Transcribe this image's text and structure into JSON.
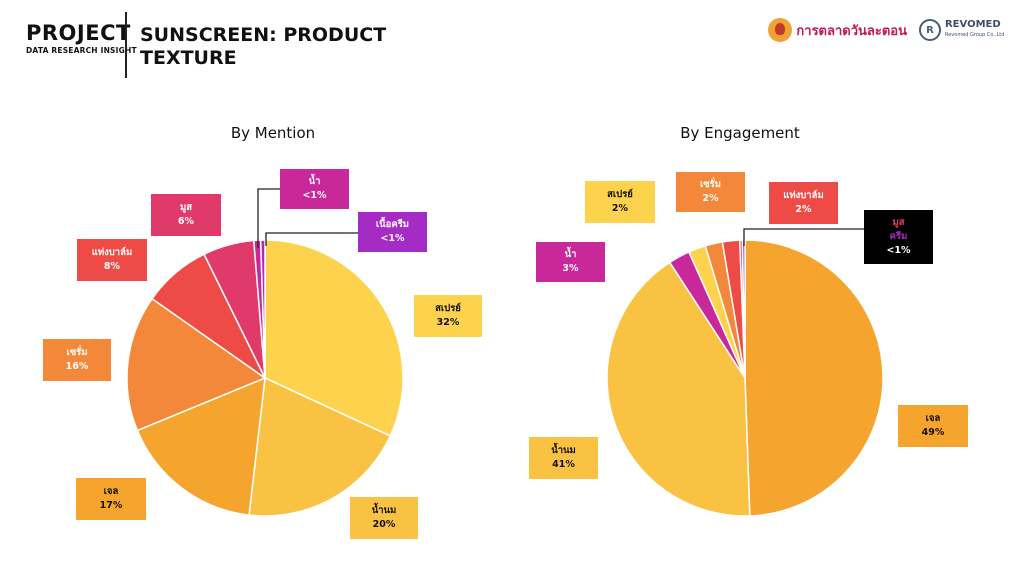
{
  "header": {
    "project": "PROJECT",
    "subtitle": "DATA RESEARCH INSIGHT",
    "page_title": "SUNSCREEN: PRODUCT TEXTURE",
    "logo_a_text": "การตลาดวันละตอน",
    "logo_b_mark": "R",
    "logo_b_name": "REVOMED",
    "logo_b_sub": "Revomed Group Co.,Ltd."
  },
  "chart_data": [
    {
      "type": "pie",
      "title": "By Mention",
      "slices": [
        {
          "label": "สเปรย์",
          "value": 32,
          "display": "32%",
          "color": "#fdd34e"
        },
        {
          "label": "น้ำนม",
          "value": 20,
          "display": "20%",
          "color": "#f9c242"
        },
        {
          "label": "เจล",
          "value": 17,
          "display": "17%",
          "color": "#f5a52d"
        },
        {
          "label": "เซรั่ม",
          "value": 16,
          "display": "16%",
          "color": "#f3873a"
        },
        {
          "label": "แท่งบาล์ม",
          "value": 8,
          "display": "8%",
          "color": "#ee4b46"
        },
        {
          "label": "มูส",
          "value": 6,
          "display": "6%",
          "color": "#e03a6a"
        },
        {
          "label": "น้ำ",
          "value": 0.8,
          "display": "<1%",
          "color": "#c9289b"
        },
        {
          "label": "เนื้อครีม",
          "value": 0.5,
          "display": "<1%",
          "color": "#a42bc3"
        }
      ]
    },
    {
      "type": "pie",
      "title": "By Engagement",
      "slices": [
        {
          "label": "เจล",
          "value": 49,
          "display": "49%",
          "color": "#f5a52d"
        },
        {
          "label": "น้ำนม",
          "value": 41,
          "display": "41%",
          "color": "#f9c242"
        },
        {
          "label": "น้ำ",
          "value": 2.5,
          "display": "3%",
          "color": "#c9289b"
        },
        {
          "label": "สเปรย์",
          "value": 2,
          "display": "2%",
          "color": "#fdd34e"
        },
        {
          "label": "เซรั่ม",
          "value": 2,
          "display": "2%",
          "color": "#f3873a"
        },
        {
          "label": "แท่งบาล์ม",
          "value": 2,
          "display": "2%",
          "color": "#ee4b46"
        },
        {
          "label": "มูส",
          "value": 0.3,
          "display": "<1%",
          "color": "#e03a6a"
        },
        {
          "label": "ครีม",
          "value": 0.3,
          "display": "<1%",
          "color": "#a42bc3"
        }
      ]
    }
  ]
}
